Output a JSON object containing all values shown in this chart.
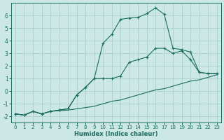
{
  "xlabel": "Humidex (Indice chaleur)",
  "xlim": [
    -0.5,
    23.5
  ],
  "ylim": [
    -2.5,
    7.0
  ],
  "yticks": [
    -2,
    -1,
    0,
    1,
    2,
    3,
    4,
    5,
    6
  ],
  "xticks": [
    0,
    1,
    2,
    3,
    4,
    5,
    6,
    7,
    8,
    9,
    10,
    11,
    12,
    13,
    14,
    15,
    16,
    17,
    18,
    19,
    20,
    21,
    22,
    23
  ],
  "background_color": "#cce8e4",
  "grid_color": "#aacfcb",
  "line_color": "#1a6b60",
  "line1_x": [
    0,
    1,
    2,
    3,
    4,
    5,
    6,
    7,
    8,
    9,
    10,
    11,
    12,
    13,
    14,
    15,
    16,
    17,
    18,
    19,
    20,
    21,
    22,
    23
  ],
  "line1_y": [
    -1.8,
    -1.9,
    -1.6,
    -1.8,
    -1.6,
    -1.55,
    -1.5,
    -1.4,
    -1.3,
    -1.2,
    -1.0,
    -0.8,
    -0.7,
    -0.5,
    -0.3,
    -0.1,
    0.1,
    0.2,
    0.4,
    0.6,
    0.8,
    0.9,
    1.1,
    1.3
  ],
  "line2_x": [
    0,
    1,
    2,
    3,
    4,
    5,
    6,
    7,
    8,
    9,
    10,
    11,
    12,
    13,
    14,
    15,
    16,
    17,
    18,
    19,
    20,
    21,
    22,
    23
  ],
  "line2_y": [
    -1.8,
    -1.9,
    -1.6,
    -1.8,
    -1.6,
    -1.5,
    -1.4,
    -0.3,
    0.3,
    1.0,
    3.8,
    4.5,
    5.7,
    5.8,
    5.85,
    6.15,
    6.6,
    6.1,
    3.4,
    3.3,
    3.1,
    1.5,
    1.4,
    1.4
  ],
  "line3_x": [
    0,
    1,
    2,
    3,
    4,
    5,
    6,
    7,
    8,
    9,
    10,
    11,
    12,
    13,
    14,
    15,
    16,
    17,
    18,
    19,
    20,
    21,
    22,
    23
  ],
  "line3_y": [
    -1.8,
    -1.9,
    -1.6,
    -1.8,
    -1.6,
    -1.5,
    -1.4,
    -0.3,
    0.3,
    1.0,
    1.0,
    1.0,
    1.2,
    2.3,
    2.5,
    2.7,
    3.4,
    3.4,
    3.0,
    3.2,
    2.5,
    1.5,
    1.4,
    1.4
  ]
}
